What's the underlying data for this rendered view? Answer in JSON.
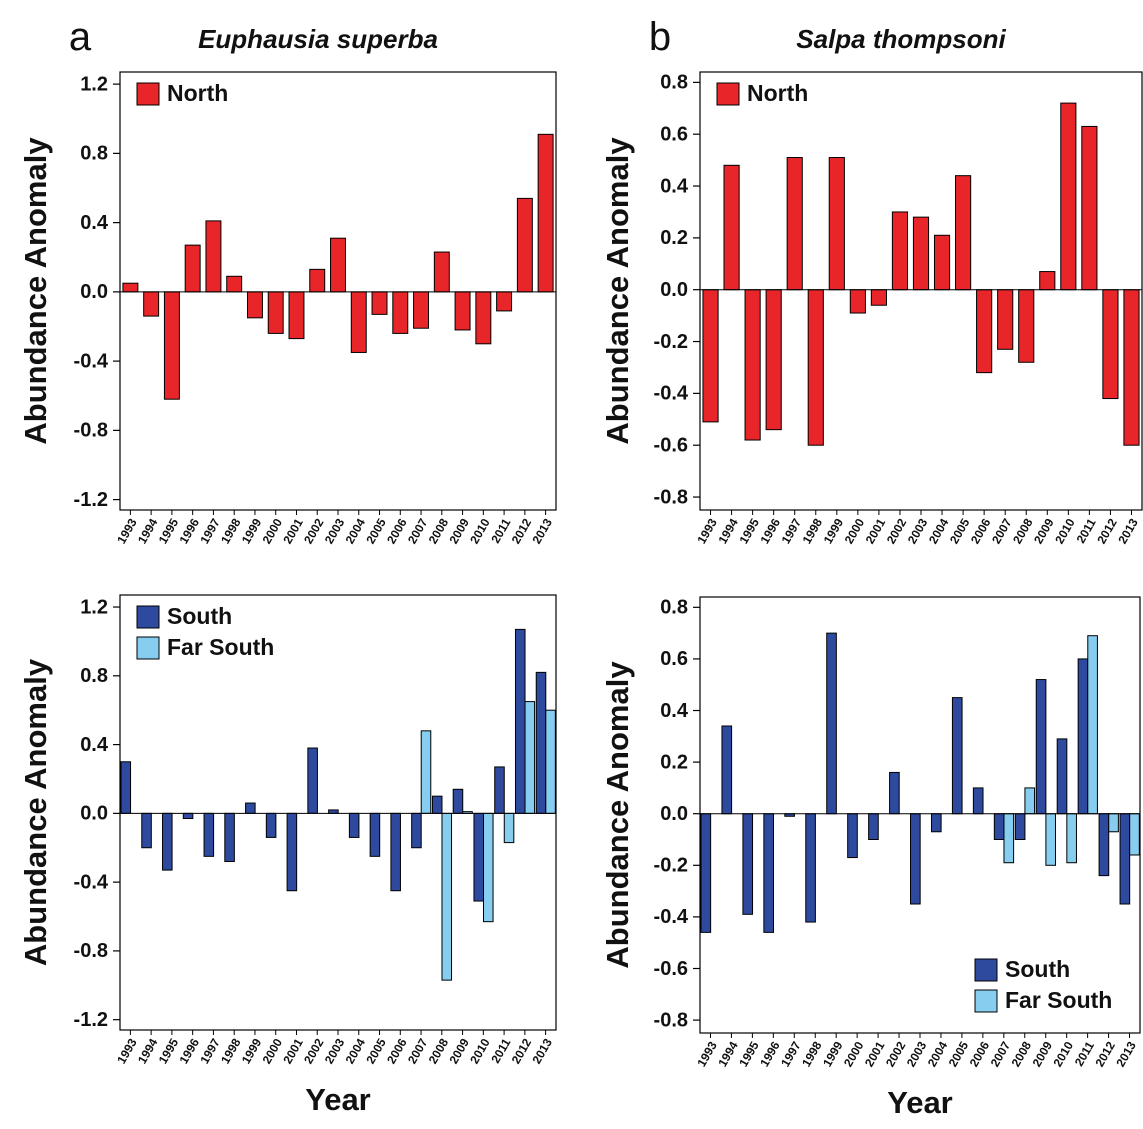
{
  "chart_data": [
    {
      "type": "bar",
      "panel_label": "a",
      "title": "Euphausia superba",
      "ylabel": "Abundance Anomaly",
      "categories": [
        "1993",
        "1994",
        "1995",
        "1996",
        "1997",
        "1998",
        "1999",
        "2000",
        "2001",
        "2002",
        "2003",
        "2004",
        "2005",
        "2006",
        "2007",
        "2008",
        "2009",
        "2010",
        "2011",
        "2012",
        "2013"
      ],
      "series": [
        {
          "name": "North",
          "color": "#e8262a",
          "values": [
            0.05,
            -0.14,
            -0.62,
            0.27,
            0.41,
            0.09,
            -0.15,
            -0.24,
            -0.27,
            0.13,
            0.31,
            -0.35,
            -0.13,
            -0.24,
            -0.21,
            0.23,
            -0.22,
            -0.3,
            -0.11,
            0.54,
            0.91
          ]
        }
      ],
      "ylim": [
        -1.26,
        1.27
      ],
      "yticks": [
        -1.2,
        -0.8,
        -0.4,
        {
          "value": 0,
          "label": "0.0"
        },
        0.4,
        0.8,
        1.2
      ],
      "legend": "top-left"
    },
    {
      "type": "bar",
      "panel_label": "b",
      "title": "Salpa thompsoni",
      "ylabel": "Abundance Anomaly",
      "categories": [
        "1993",
        "1994",
        "1995",
        "1996",
        "1997",
        "1998",
        "1999",
        "2000",
        "2001",
        "2002",
        "2003",
        "2004",
        "2005",
        "2006",
        "2007",
        "2008",
        "2009",
        "2010",
        "2011",
        "2012",
        "2013"
      ],
      "series": [
        {
          "name": "North",
          "color": "#e8262a",
          "values": [
            -0.51,
            0.48,
            -0.58,
            -0.54,
            0.51,
            -0.6,
            0.51,
            -0.09,
            -0.06,
            0.3,
            0.28,
            0.21,
            0.44,
            -0.32,
            -0.23,
            -0.28,
            0.07,
            0.72,
            0.63,
            -0.42,
            -0.6
          ]
        }
      ],
      "ylim": [
        -0.85,
        0.84
      ],
      "yticks": [
        -0.8,
        -0.6,
        -0.4,
        -0.2,
        {
          "value": 0,
          "label": "0.0"
        },
        0.2,
        0.4,
        0.6,
        0.8
      ],
      "legend": "top-left"
    },
    {
      "type": "bar",
      "ylabel": "Abundance Anomaly",
      "xlabel": "Year",
      "categories": [
        "1993",
        "1994",
        "1995",
        "1996",
        "1997",
        "1998",
        "1999",
        "2000",
        "2001",
        "2002",
        "2003",
        "2004",
        "2005",
        "2006",
        "2007",
        "2008",
        "2009",
        "2010",
        "2011",
        "2012",
        "2013"
      ],
      "series": [
        {
          "name": "South",
          "color": "#2e4a9e",
          "values": [
            0.3,
            -0.2,
            -0.33,
            -0.03,
            -0.25,
            -0.28,
            0.06,
            -0.14,
            -0.45,
            0.38,
            0.02,
            -0.14,
            -0.25,
            -0.45,
            -0.2,
            0.1,
            0.14,
            -0.51,
            0.27,
            1.07,
            0.82
          ]
        },
        {
          "name": "Far South",
          "color": "#86cdf0",
          "values": [
            null,
            null,
            null,
            null,
            null,
            null,
            null,
            null,
            null,
            null,
            null,
            null,
            null,
            null,
            0.48,
            -0.97,
            0.01,
            -0.63,
            -0.17,
            0.65,
            0.6
          ]
        }
      ],
      "ylim": [
        -1.26,
        1.27
      ],
      "yticks": [
        -1.2,
        -0.8,
        -0.4,
        {
          "value": 0,
          "label": "0.0"
        },
        0.4,
        0.8,
        1.2
      ],
      "legend": "top-left"
    },
    {
      "type": "bar",
      "ylabel": "Abundance Anomaly",
      "xlabel": "Year",
      "categories": [
        "1993",
        "1994",
        "1995",
        "1996",
        "1997",
        "1998",
        "1999",
        "2000",
        "2001",
        "2002",
        "2003",
        "2004",
        "2005",
        "2006",
        "2007",
        "2008",
        "2009",
        "2010",
        "2011",
        "2012",
        "2013"
      ],
      "series": [
        {
          "name": "South",
          "color": "#2e4a9e",
          "values": [
            -0.46,
            0.34,
            -0.39,
            -0.46,
            -0.01,
            -0.42,
            0.7,
            -0.17,
            -0.1,
            0.16,
            -0.35,
            -0.07,
            0.45,
            0.1,
            -0.1,
            -0.1,
            0.52,
            0.29,
            0.6,
            -0.24,
            -0.35
          ]
        },
        {
          "name": "Far South",
          "color": "#86cdf0",
          "values": [
            null,
            null,
            null,
            null,
            null,
            null,
            null,
            null,
            null,
            null,
            null,
            null,
            null,
            null,
            -0.19,
            0.1,
            -0.2,
            -0.19,
            0.69,
            -0.07,
            -0.16
          ]
        }
      ],
      "ylim": [
        -0.85,
        0.84
      ],
      "yticks": [
        -0.8,
        -0.6,
        -0.4,
        -0.2,
        {
          "value": 0,
          "label": "0.0"
        },
        0.2,
        0.4,
        0.6,
        0.8
      ],
      "legend": "bottom-right"
    }
  ]
}
